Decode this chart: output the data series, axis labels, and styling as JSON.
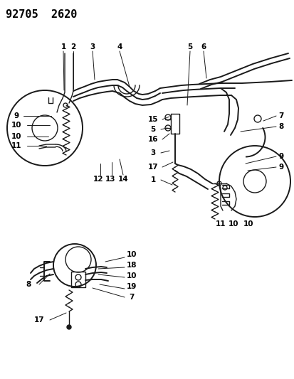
{
  "title": "92705  2620",
  "bg_color": "#ffffff",
  "line_color": "#1a1a1a",
  "label_color": "#000000",
  "lfs": 7.5,
  "fig_width": 4.14,
  "fig_height": 5.33,
  "dpi": 100
}
